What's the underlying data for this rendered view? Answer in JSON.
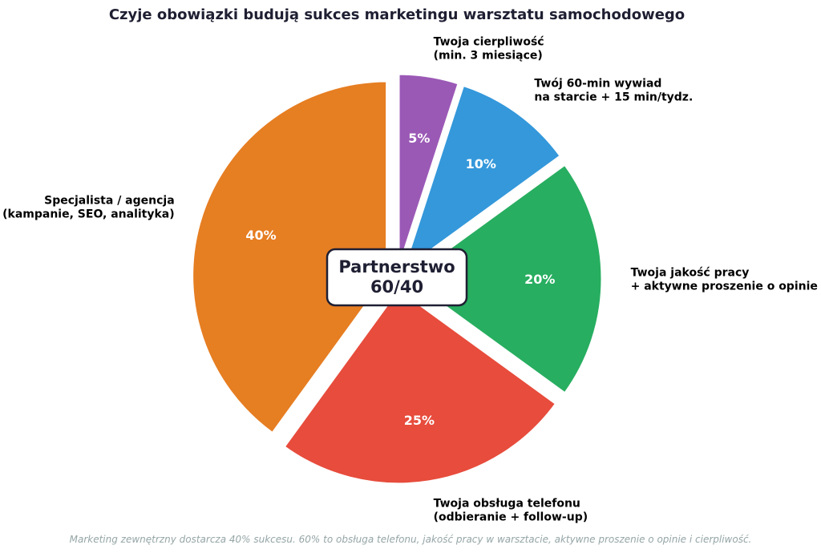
{
  "chart_data": {
    "type": "pie",
    "title": "Czyje obowiązki budują sukces marketingu warsztatu samochodowego",
    "slices": [
      {
        "label_lines": [
          "Twoja cierpliwość",
          "(min. 3 miesiące)"
        ],
        "value": 5,
        "value_label": "5%",
        "color": "#9b59b6"
      },
      {
        "label_lines": [
          "Twój 60-min wywiad",
          "na starcie + 15 min/tydz."
        ],
        "value": 10,
        "value_label": "10%",
        "color": "#3498db"
      },
      {
        "label_lines": [
          "Twoja jakość pracy",
          "+ aktywne proszenie o opinie"
        ],
        "value": 20,
        "value_label": "20%",
        "color": "#27ae60"
      },
      {
        "label_lines": [
          "Twoja obsługa telefonu",
          "(odbieranie + follow-up)"
        ],
        "value": 25,
        "value_label": "25%",
        "color": "#e74c3c"
      },
      {
        "label_lines": [
          "Specjalista / agencja",
          "(kampanie, SEO, analityka)"
        ],
        "value": 40,
        "value_label": "40%",
        "color": "#e67e22"
      }
    ],
    "center_label": [
      "Partnerstwo",
      "60/40"
    ],
    "footnote": "Marketing zewnętrzny dostarcza 40% sukcesu. 60% to obsługa telefonu, jakość pracy w warsztacie, aktywne proszenie o opinie i cierpliwość."
  }
}
